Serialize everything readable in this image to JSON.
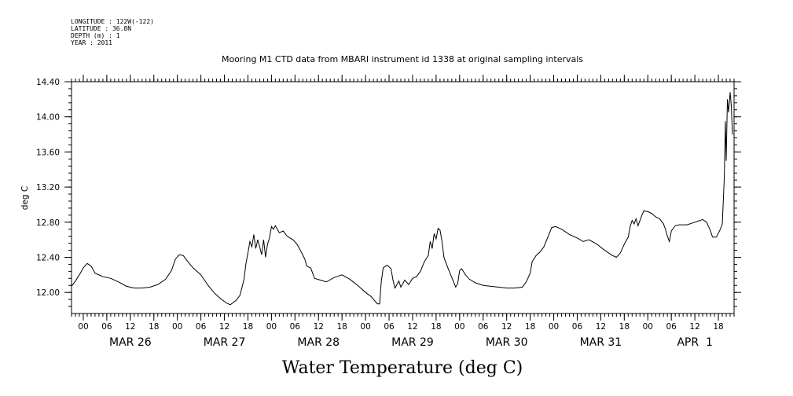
{
  "meta": {
    "longitude": "LONGITUDE : 122W(-122)",
    "latitude": "LATITUDE : 36.8N",
    "depth": "DEPTH (m) : 1",
    "year": "YEAR : 2011"
  },
  "chart_data": {
    "type": "line",
    "title": "Mooring M1 CTD data from MBARI instrument id 1338 at original sampling intervals",
    "xlabel": "Water Temperature (deg C)",
    "ylabel": "deg C",
    "ylim": [
      11.76,
      14.4
    ],
    "xlim_hours": [
      -3,
      166
    ],
    "x_unit": "hours since 2011-03-26 00:00",
    "y_ticks": [
      "12.00",
      "12.40",
      "12.80",
      "13.20",
      "13.60",
      "14.00",
      "14.40"
    ],
    "y_tick_values": [
      12.0,
      12.4,
      12.8,
      13.2,
      13.6,
      14.0,
      14.4
    ],
    "x_hour_ticks": [
      {
        "h": 0,
        "label": "00"
      },
      {
        "h": 6,
        "label": "06"
      },
      {
        "h": 12,
        "label": "12"
      },
      {
        "h": 18,
        "label": "18"
      },
      {
        "h": 24,
        "label": "00"
      },
      {
        "h": 30,
        "label": "06"
      },
      {
        "h": 36,
        "label": "12"
      },
      {
        "h": 42,
        "label": "18"
      },
      {
        "h": 48,
        "label": "00"
      },
      {
        "h": 54,
        "label": "06"
      },
      {
        "h": 60,
        "label": "12"
      },
      {
        "h": 66,
        "label": "18"
      },
      {
        "h": 72,
        "label": "00"
      },
      {
        "h": 78,
        "label": "06"
      },
      {
        "h": 84,
        "label": "12"
      },
      {
        "h": 90,
        "label": "18"
      },
      {
        "h": 96,
        "label": "00"
      },
      {
        "h": 102,
        "label": "06"
      },
      {
        "h": 108,
        "label": "12"
      },
      {
        "h": 114,
        "label": "18"
      },
      {
        "h": 120,
        "label": "00"
      },
      {
        "h": 126,
        "label": "06"
      },
      {
        "h": 132,
        "label": "12"
      },
      {
        "h": 138,
        "label": "18"
      },
      {
        "h": 144,
        "label": "00"
      },
      {
        "h": 150,
        "label": "06"
      },
      {
        "h": 156,
        "label": "12"
      },
      {
        "h": 162,
        "label": "18"
      }
    ],
    "x_date_labels": [
      {
        "h": 12,
        "label": "MAR 26"
      },
      {
        "h": 36,
        "label": "MAR 27"
      },
      {
        "h": 60,
        "label": "MAR 28"
      },
      {
        "h": 84,
        "label": "MAR 29"
      },
      {
        "h": 108,
        "label": "MAR 30"
      },
      {
        "h": 132,
        "label": "MAR 31"
      },
      {
        "h": 156,
        "label": "APR  1"
      }
    ],
    "series": [
      {
        "color": "#000000",
        "points": [
          [
            -3.0,
            12.07
          ],
          [
            -2.0,
            12.13
          ],
          [
            -1.0,
            12.2
          ],
          [
            0.0,
            12.28
          ],
          [
            1.0,
            12.33
          ],
          [
            2.0,
            12.3
          ],
          [
            3.0,
            12.22
          ],
          [
            5.0,
            12.18
          ],
          [
            7.0,
            12.16
          ],
          [
            9.0,
            12.12
          ],
          [
            11.0,
            12.07
          ],
          [
            13.0,
            12.05
          ],
          [
            15.0,
            12.05
          ],
          [
            17.0,
            12.06
          ],
          [
            19.0,
            12.09
          ],
          [
            21.0,
            12.15
          ],
          [
            22.5,
            12.25
          ],
          [
            23.5,
            12.38
          ],
          [
            24.5,
            12.43
          ],
          [
            25.5,
            12.42
          ],
          [
            26.5,
            12.36
          ],
          [
            28.0,
            12.28
          ],
          [
            30.0,
            12.2
          ],
          [
            32.0,
            12.07
          ],
          [
            33.5,
            11.99
          ],
          [
            35.0,
            11.93
          ],
          [
            36.5,
            11.88
          ],
          [
            37.5,
            11.86
          ],
          [
            39.0,
            11.91
          ],
          [
            40.0,
            11.97
          ],
          [
            41.0,
            12.15
          ],
          [
            41.5,
            12.33
          ],
          [
            42.0,
            12.45
          ],
          [
            42.5,
            12.58
          ],
          [
            43.0,
            12.52
          ],
          [
            43.5,
            12.66
          ],
          [
            44.0,
            12.5
          ],
          [
            44.5,
            12.6
          ],
          [
            45.0,
            12.52
          ],
          [
            45.5,
            12.43
          ],
          [
            46.0,
            12.6
          ],
          [
            46.5,
            12.4
          ],
          [
            47.0,
            12.55
          ],
          [
            47.5,
            12.62
          ],
          [
            48.0,
            12.75
          ],
          [
            48.5,
            12.72
          ],
          [
            49.0,
            12.76
          ],
          [
            50.0,
            12.68
          ],
          [
            51.0,
            12.7
          ],
          [
            52.0,
            12.64
          ],
          [
            53.5,
            12.6
          ],
          [
            54.5,
            12.55
          ],
          [
            55.5,
            12.47
          ],
          [
            56.5,
            12.38
          ],
          [
            57.0,
            12.3
          ],
          [
            58.0,
            12.28
          ],
          [
            59.0,
            12.16
          ],
          [
            60.5,
            12.14
          ],
          [
            62.0,
            12.12
          ],
          [
            64.0,
            12.17
          ],
          [
            66.0,
            12.2
          ],
          [
            68.0,
            12.15
          ],
          [
            70.0,
            12.08
          ],
          [
            72.0,
            12.0
          ],
          [
            73.5,
            11.95
          ],
          [
            75.0,
            11.87
          ],
          [
            75.6,
            11.87
          ],
          [
            76.0,
            12.12
          ],
          [
            76.5,
            12.28
          ],
          [
            77.5,
            12.31
          ],
          [
            78.5,
            12.27
          ],
          [
            79.0,
            12.14
          ],
          [
            79.5,
            12.05
          ],
          [
            80.5,
            12.13
          ],
          [
            81.0,
            12.06
          ],
          [
            82.0,
            12.14
          ],
          [
            83.0,
            12.09
          ],
          [
            84.0,
            12.16
          ],
          [
            85.0,
            12.18
          ],
          [
            86.0,
            12.24
          ],
          [
            87.0,
            12.35
          ],
          [
            88.0,
            12.42
          ],
          [
            88.5,
            12.58
          ],
          [
            89.0,
            12.5
          ],
          [
            89.5,
            12.67
          ],
          [
            90.0,
            12.61
          ],
          [
            90.5,
            12.73
          ],
          [
            91.0,
            12.71
          ],
          [
            91.5,
            12.58
          ],
          [
            92.0,
            12.4
          ],
          [
            93.0,
            12.28
          ],
          [
            94.0,
            12.17
          ],
          [
            95.0,
            12.06
          ],
          [
            95.5,
            12.1
          ],
          [
            96.0,
            12.25
          ],
          [
            96.5,
            12.27
          ],
          [
            97.5,
            12.2
          ],
          [
            98.5,
            12.15
          ],
          [
            100.0,
            12.11
          ],
          [
            102.0,
            12.08
          ],
          [
            104.0,
            12.07
          ],
          [
            106.0,
            12.06
          ],
          [
            108.0,
            12.05
          ],
          [
            110.0,
            12.05
          ],
          [
            112.0,
            12.06
          ],
          [
            113.0,
            12.12
          ],
          [
            114.0,
            12.22
          ],
          [
            114.5,
            12.35
          ],
          [
            115.5,
            12.42
          ],
          [
            116.5,
            12.46
          ],
          [
            117.5,
            12.52
          ],
          [
            118.5,
            12.63
          ],
          [
            119.5,
            12.74
          ],
          [
            120.5,
            12.75
          ],
          [
            122.0,
            12.72
          ],
          [
            124.0,
            12.66
          ],
          [
            126.0,
            12.62
          ],
          [
            127.5,
            12.58
          ],
          [
            129.0,
            12.6
          ],
          [
            131.0,
            12.55
          ],
          [
            133.0,
            12.48
          ],
          [
            135.0,
            12.42
          ],
          [
            136.0,
            12.4
          ],
          [
            137.0,
            12.45
          ],
          [
            138.0,
            12.55
          ],
          [
            139.0,
            12.63
          ],
          [
            139.5,
            12.75
          ],
          [
            140.0,
            12.82
          ],
          [
            140.5,
            12.78
          ],
          [
            141.0,
            12.84
          ],
          [
            141.5,
            12.76
          ],
          [
            142.0,
            12.82
          ],
          [
            142.5,
            12.88
          ],
          [
            143.0,
            12.93
          ],
          [
            144.0,
            12.92
          ],
          [
            145.0,
            12.9
          ],
          [
            146.0,
            12.86
          ],
          [
            147.0,
            12.84
          ],
          [
            148.0,
            12.78
          ],
          [
            148.5,
            12.72
          ],
          [
            149.0,
            12.64
          ],
          [
            149.5,
            12.58
          ],
          [
            150.0,
            12.7
          ],
          [
            151.0,
            12.76
          ],
          [
            152.0,
            12.77
          ],
          [
            154.0,
            12.77
          ],
          [
            156.0,
            12.8
          ],
          [
            158.0,
            12.83
          ],
          [
            159.0,
            12.8
          ],
          [
            160.0,
            12.7
          ],
          [
            160.5,
            12.63
          ],
          [
            161.5,
            12.63
          ],
          [
            162.5,
            12.72
          ],
          [
            163.0,
            12.78
          ],
          [
            163.5,
            13.3
          ],
          [
            163.8,
            13.95
          ],
          [
            164.0,
            13.5
          ],
          [
            164.3,
            14.2
          ],
          [
            164.6,
            14.05
          ],
          [
            165.0,
            14.28
          ],
          [
            165.3,
            14.12
          ],
          [
            165.6,
            13.8
          ]
        ]
      }
    ]
  }
}
